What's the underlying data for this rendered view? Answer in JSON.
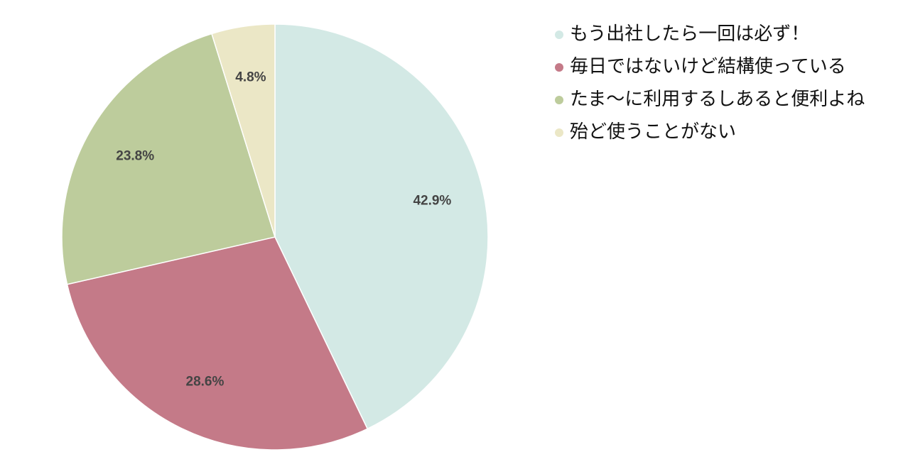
{
  "chart_data": {
    "type": "pie",
    "categories": [
      "もう出社したら一回は必ず！",
      "毎日ではないけど結構使っている",
      "たま〜に利用するしあると便利よね",
      "殆ど使うことがない"
    ],
    "values": [
      42.9,
      28.6,
      23.8,
      4.8
    ],
    "value_labels": [
      "42.9%",
      "28.6%",
      "23.8%",
      "4.8%"
    ],
    "colors": [
      "#d3e9e5",
      "#c47a88",
      "#bdcc9c",
      "#ebe7c6"
    ],
    "legend": "top-right"
  }
}
